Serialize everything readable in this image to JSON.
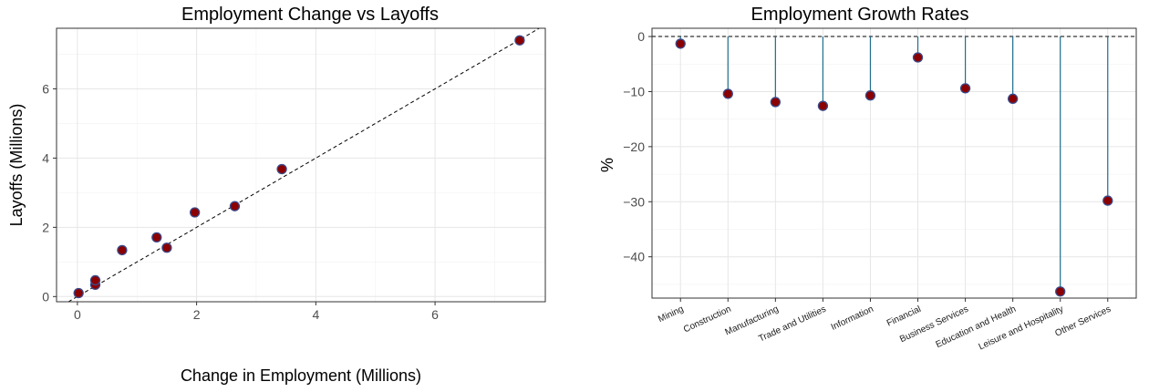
{
  "chart_data": [
    {
      "type": "scatter",
      "title": "Employment Change vs Layoffs",
      "xlabel": "Change in Employment (Millions)",
      "ylabel": "Layoffs (Millions)",
      "xlim": [
        -0.35,
        7.85
      ],
      "ylim": [
        -0.15,
        7.75
      ],
      "x_ticks": [
        0,
        2,
        4,
        6
      ],
      "y_ticks": [
        0,
        2,
        4,
        6
      ],
      "grid": true,
      "reference_line": "y = x",
      "marker_fill": "#8b0000",
      "marker_edge": "#3a4a8a",
      "points": [
        {
          "x": 0.02,
          "y": 0.1
        },
        {
          "x": 0.3,
          "y": 0.34
        },
        {
          "x": 0.3,
          "y": 0.47
        },
        {
          "x": 0.75,
          "y": 1.34
        },
        {
          "x": 1.33,
          "y": 1.71
        },
        {
          "x": 1.5,
          "y": 1.41
        },
        {
          "x": 1.97,
          "y": 2.43
        },
        {
          "x": 2.64,
          "y": 2.61
        },
        {
          "x": 3.43,
          "y": 3.68
        },
        {
          "x": 7.42,
          "y": 7.4
        }
      ]
    },
    {
      "type": "lollipop",
      "title": "Employment Growth Rates",
      "xlabel": "",
      "ylabel": "%",
      "ylim": [
        -47.5,
        1.5
      ],
      "y_ticks": [
        0,
        -10,
        -20,
        -30,
        -40
      ],
      "y_tick_labels": [
        "0",
        "−10",
        "−20",
        "−30",
        "−40"
      ],
      "grid": true,
      "zero_line": "dashed",
      "stem_color": "#1f6e8c",
      "marker_fill": "#8b0000",
      "marker_edge": "#3a4a8a",
      "categories": [
        "Mining",
        "Construction",
        "Manufacturing",
        "Trade and Utilities",
        "Information",
        "Financial",
        "Business Services",
        "Education and Health",
        "Leisure and Hospitality",
        "Other Services"
      ],
      "values": [
        -1.3,
        -10.4,
        -11.9,
        -12.6,
        -10.7,
        -3.8,
        -9.4,
        -11.3,
        -46.3,
        -29.8
      ]
    }
  ]
}
